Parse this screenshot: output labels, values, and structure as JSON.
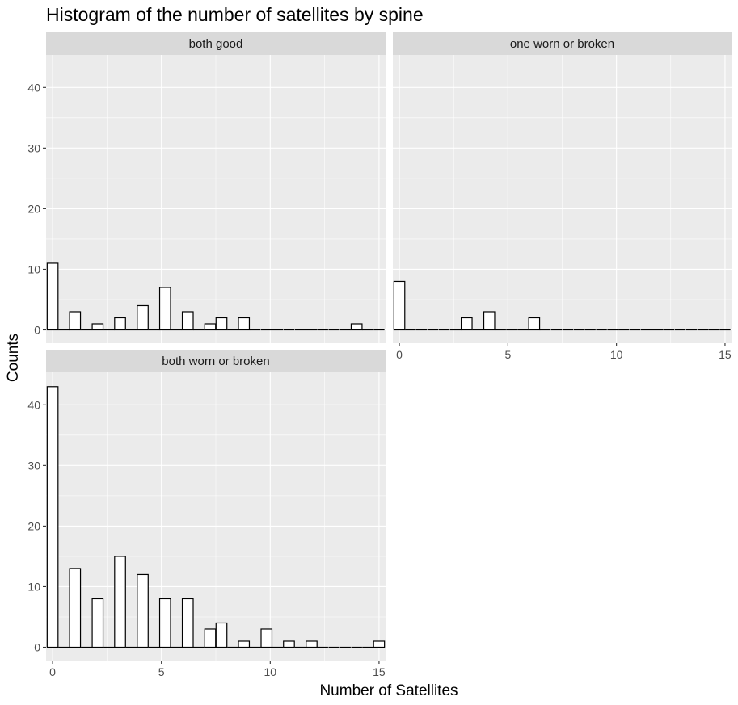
{
  "chart_data": {
    "type": "bar",
    "title": "Histogram of the number of satellites by spine",
    "xlabel": "Number of Satellites",
    "ylabel": "Counts",
    "xlim": [
      -0.3,
      15.3
    ],
    "ylim": [
      0,
      45
    ],
    "x_ticks": [
      0,
      5,
      10,
      15
    ],
    "y_ticks": [
      0,
      10,
      20,
      30,
      40
    ],
    "x_tick_labels": [
      "0",
      "5",
      "10",
      "15"
    ],
    "y_tick_labels": [
      "0",
      "10",
      "20",
      "30",
      "40"
    ],
    "bin_width": 0.5,
    "bin_centers": [
      0,
      0.52,
      1.03,
      1.55,
      2.07,
      2.59,
      3.1,
      3.62,
      4.14,
      4.66,
      5.17,
      5.69,
      6.21,
      6.72,
      7.24,
      7.76,
      8.28,
      8.79,
      9.31,
      9.83,
      10.34,
      10.86,
      11.38,
      11.9,
      12.41,
      12.93,
      13.45,
      13.97,
      14.48,
      15
    ],
    "grid": true,
    "colors": {
      "panel_background": "#ebebeb",
      "grid_major": "#ffffff",
      "strip_background": "#d9d9d9",
      "bar_fill": "#ffffff",
      "bar_outline": "#000000"
    },
    "panels": [
      {
        "name": "both good",
        "values": [
          11,
          0,
          3,
          0,
          1,
          0,
          2,
          0,
          4,
          0,
          7,
          0,
          3,
          0,
          1,
          2,
          0,
          2,
          0,
          0,
          0,
          0,
          0,
          0,
          0,
          0,
          0,
          1,
          0,
          0
        ]
      },
      {
        "name": "one worn or broken",
        "values": [
          8,
          0,
          0,
          0,
          0,
          0,
          2,
          0,
          3,
          0,
          0,
          0,
          2,
          0,
          0,
          0,
          0,
          0,
          0,
          0,
          0,
          0,
          0,
          0,
          0,
          0,
          0,
          0,
          0,
          0
        ]
      },
      {
        "name": "both worn or broken",
        "values": [
          43,
          0,
          13,
          0,
          8,
          0,
          15,
          0,
          12,
          0,
          8,
          0,
          8,
          0,
          3,
          4,
          0,
          1,
          0,
          3,
          0,
          1,
          0,
          1,
          0,
          0,
          0,
          0,
          0,
          1
        ]
      }
    ]
  }
}
